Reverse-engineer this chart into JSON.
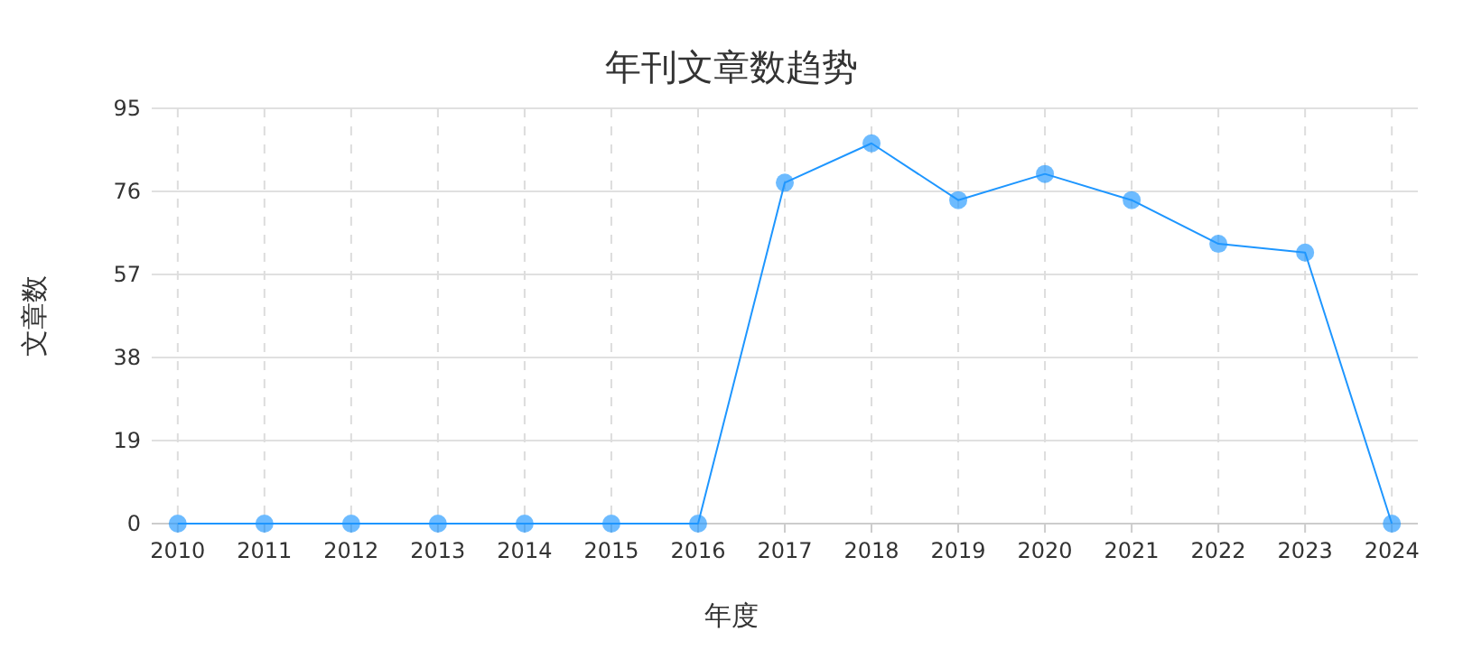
{
  "chart_data": {
    "type": "line",
    "title": "年刊文章数趋势",
    "xlabel": "年度",
    "ylabel": "文章数",
    "categories": [
      "2010",
      "2011",
      "2012",
      "2013",
      "2014",
      "2015",
      "2016",
      "2017",
      "2018",
      "2019",
      "2020",
      "2021",
      "2022",
      "2023",
      "2024"
    ],
    "series": [
      {
        "color": "#1e96ff",
        "values": [
          0,
          0,
          0,
          0,
          0,
          0,
          0,
          78,
          87,
          74,
          80,
          74,
          64,
          62,
          0
        ]
      }
    ],
    "ylim": [
      0,
      95
    ],
    "yticks": [
      0,
      19,
      38,
      57,
      76,
      95
    ],
    "grid": true,
    "marker": "circle",
    "line_style": "solid"
  }
}
